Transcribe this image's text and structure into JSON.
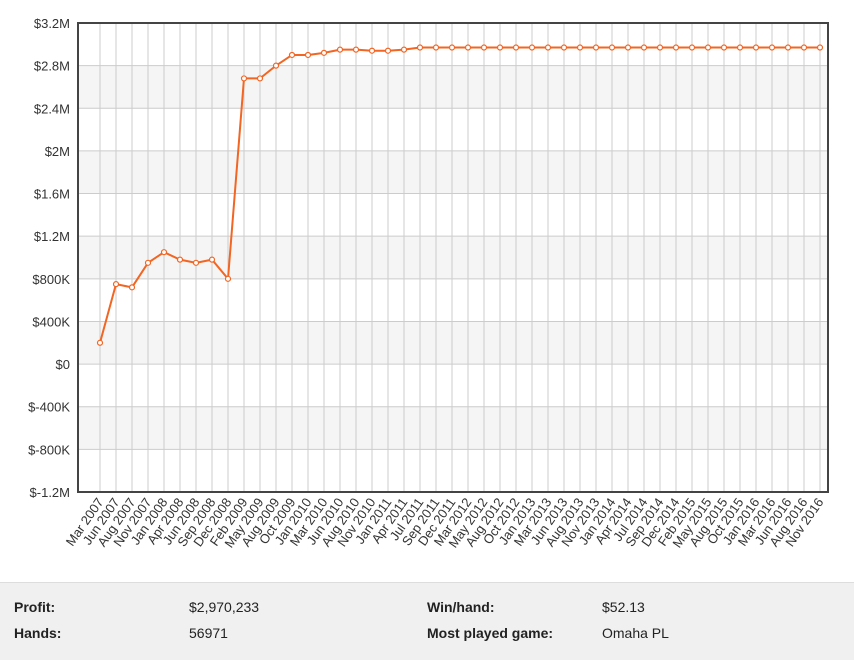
{
  "chart_data": {
    "type": "line",
    "categories": [
      "Mar 2007",
      "Jun 2007",
      "Aug 2007",
      "Nov 2007",
      "Jan 2008",
      "Apr 2008",
      "Jun 2008",
      "Sep 2008",
      "Dec 2008",
      "Feb 2009",
      "May 2009",
      "Aug 2009",
      "Oct 2009",
      "Jan 2010",
      "Mar 2010",
      "Jun 2010",
      "Aug 2010",
      "Nov 2010",
      "Jan 2011",
      "Apr 2011",
      "Jul 2011",
      "Sep 2011",
      "Dec 2011",
      "Mar 2012",
      "May 2012",
      "Aug 2012",
      "Oct 2012",
      "Jan 2013",
      "Mar 2013",
      "Jun 2013",
      "Aug 2013",
      "Nov 2013",
      "Jan 2014",
      "Apr 2014",
      "Jul 2014",
      "Sep 2014",
      "Dec 2014",
      "Feb 2015",
      "May 2015",
      "Aug 2015",
      "Oct 2015",
      "Jan 2016",
      "Mar 2016",
      "Jun 2016",
      "Aug 2016",
      "Nov 2016"
    ],
    "series": [
      {
        "color": "#f26522",
        "values": [
          200000,
          750000,
          720000,
          950000,
          1050000,
          980000,
          950000,
          980000,
          800000,
          2680000,
          2680000,
          2800000,
          2900000,
          2900000,
          2920000,
          2950000,
          2950000,
          2940000,
          2940000,
          2950000,
          2970000,
          2970000,
          2970000,
          2970000,
          2970000,
          2970000,
          2970000,
          2970000,
          2970000,
          2970000,
          2970000,
          2970000,
          2970000,
          2970000,
          2970000,
          2970000,
          2970000,
          2970000,
          2970000,
          2970000,
          2970000,
          2970000,
          2970000,
          2970000,
          2970000,
          2970000
        ]
      }
    ],
    "ylim": [
      -1200000,
      3200000
    ],
    "yticks": [
      {
        "value": -1200000,
        "label": "$-1.2M"
      },
      {
        "value": -800000,
        "label": "$-800K"
      },
      {
        "value": -400000,
        "label": "$-400K"
      },
      {
        "value": 0,
        "label": "$0"
      },
      {
        "value": 400000,
        "label": "$400K"
      },
      {
        "value": 800000,
        "label": "$800K"
      },
      {
        "value": 1200000,
        "label": "$1.2M"
      },
      {
        "value": 1600000,
        "label": "$1.6M"
      },
      {
        "value": 2000000,
        "label": "$2M"
      },
      {
        "value": 2400000,
        "label": "$2.4M"
      },
      {
        "value": 2800000,
        "label": "$2.8M"
      },
      {
        "value": 3200000,
        "label": "$3.2M"
      }
    ],
    "grid": true
  },
  "stats": {
    "profit_label": "Profit:",
    "profit": "$2,970,233",
    "winhand_label": "Win/hand:",
    "winhand": "$52.13",
    "hands_label": "Hands:",
    "hands": "56971",
    "game_label": "Most played game:",
    "game": "Omaha PL"
  }
}
